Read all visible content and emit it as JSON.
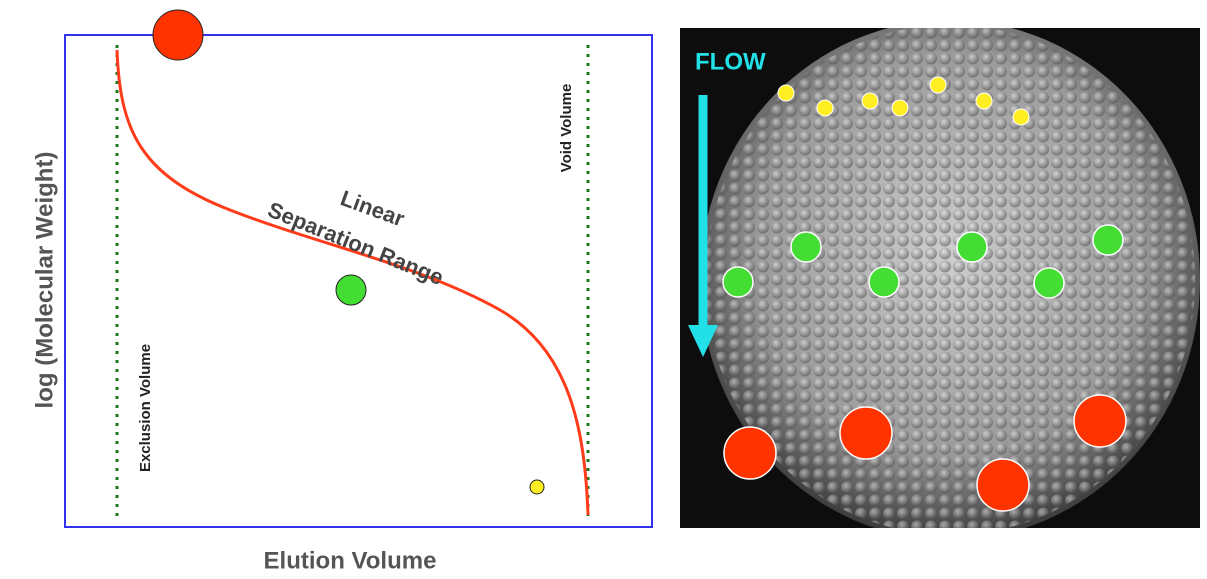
{
  "left_panel": {
    "y_axis_label": "log (Molecular Weight)",
    "x_axis_label": "Elution Volume",
    "curve_label_line1": "Linear",
    "curve_label_line2": "Separation Range",
    "exclusion_label": "Exclusion Volume",
    "void_label": "Void Volume"
  },
  "right_panel": {
    "flow_label": "FLOW"
  }
}
